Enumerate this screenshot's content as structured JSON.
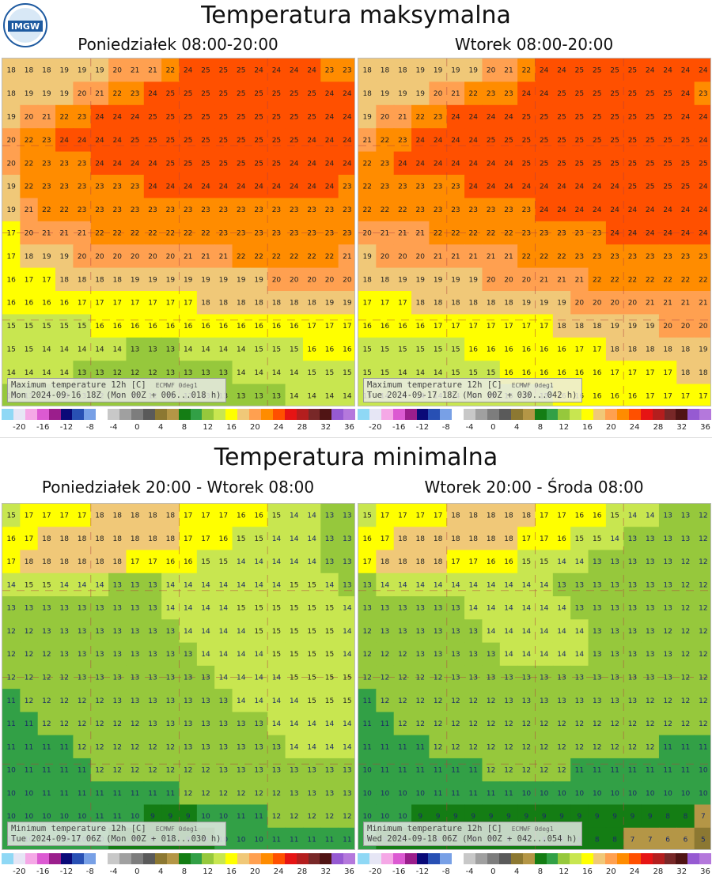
{
  "logo": {
    "text": "IMGW",
    "icon": "imgw-logo"
  },
  "sections": [
    {
      "title": "Temperatura maksymalna",
      "panels": [
        {
          "label": "Poniedziałek 08:00-20:00",
          "caption_line1": "Maximum temperature 12h [C]",
          "caption_src": "ECMWF 0deg1",
          "caption_line2": "Mon 2024-09-16 18Z (Mon 00Z + 006...018 h)"
        },
        {
          "label": "Wtorek 08:00-20:00",
          "caption_line1": "Maximum temperature 12h [C]",
          "caption_src": "ECMWF 0deg1",
          "caption_line2": "Tue 2024-09-17 18Z (Mon 00Z + 030...042 h)"
        }
      ]
    },
    {
      "title": "Temperatura minimalna",
      "panels": [
        {
          "label": "Poniedziałek 20:00 - Wtorek 08:00",
          "caption_line1": "Minimum temperature 12h [C]",
          "caption_src": "ECMWF 0deg1",
          "caption_line2": "Tue 2024-09-17 06Z (Mon 00Z + 018...030 h)"
        },
        {
          "label": "Wtorek 20:00 - Środa 08:00",
          "caption_line1": "Minimum temperature 12h [C]",
          "caption_src": "ECMWF 0deg1",
          "caption_line2": "Wed 2024-09-18 06Z (Mon 00Z + 042...054 h)"
        }
      ]
    }
  ],
  "legend": {
    "ticks": [
      "-20",
      "-16",
      "-12",
      "-8",
      "-4",
      "0",
      "4",
      "8",
      "12",
      "16",
      "20",
      "24",
      "28",
      "32",
      "36"
    ],
    "colors": [
      "#8fd8f5",
      "#e6e6f5",
      "#f5a8e6",
      "#dc5ad2",
      "#9b1e8c",
      "#0a0a78",
      "#2850b4",
      "#78a0e6",
      "#ffffff",
      "#c8c8c8",
      "#a0a0a0",
      "#7d7d7d",
      "#5a5a5a",
      "#8c7832",
      "#b49646",
      "#147d14",
      "#32a046",
      "#96c83c",
      "#c8e650",
      "#ffff00",
      "#f0c878",
      "#ffa050",
      "#ff8c00",
      "#ff5000",
      "#e61414",
      "#b41e1e",
      "#782828",
      "#501414",
      "#965ad2",
      "#b478dc"
    ]
  },
  "maps": [
    {
      "rows": [
        "18 18 18 19 19 19 20 21 21 22 24 25 25 25 24 24 24 24 23 23",
        "18 19 19 19 20 21 22 23 24 25 25 25 25 25 25 25 25 25 24 24",
        "19 20 21 22 23 24 24 24 25 25 25 25 25 25 25 25 25 25 24 24",
        "20 22 23 24 24 24 24 25 25 25 25 25 25 25 25 25 25 24 24 24",
        "20 22 23 23 23 24 24 24 24 25 25 25 25 25 25 25 24 24 24 24",
        "19 22 23 23 23 23 23 23 24 24 24 24 24 24 24 24 24 24 24 23",
        "19 21 22 22 23 23 23 23 23 23 23 23 23 23 23 23 23 23 23 23",
        "17 20 21 21 21 22 22 22 22 22 22 22 23 23 23 23 23 23 23 23",
        "17 18 19 19 20 20 20 20 20 20 21 21 21 22 22 22 22 22 22 21",
        "16 17 17 18 18 18 18 19 19 19 19 19 19 19 19 20 20 20 20 20",
        "16 16 16 16 17 17 17 17 17 17 17 18 18 18 18 18 18 18 19 19",
        "15 15 15 15 15 16 16 16 16 16 16 16 16 16 16 16 16 17 17 17",
        "15 15 14 14 14 14 14 13 13 13 14 14 14 14 15 15 15 16 16 16",
        "14 14 14 14 13 13 12 12 12 13 13 13 13 14 14 14 14 15 15 15",
        "13 13 13 13 13 12 12 12 12 12 13 13 13 13 13 13 14 14 14 14"
      ]
    },
    {
      "rows": [
        "18 18 18 19 19 19 19 20 21 22 24 24 25 25 25 25 24 24 24 24",
        "18 19 19 19 20 21 22 23 23 24 24 25 25 25 25 25 25 25 24 23",
        "19 20 21 22 23 24 24 24 24 25 25 25 25 25 25 25 25 25 24 24",
        "21 22 23 24 24 24 24 25 25 25 25 25 25 25 25 25 25 25 25 24",
        "22 23 24 24 24 24 24 24 24 25 25 25 25 25 25 25 25 25 25 25",
        "22 23 23 23 23 23 24 24 24 24 24 24 24 24 24 25 25 25 25 24",
        "22 22 22 23 23 23 23 23 23 23 24 24 24 24 24 24 24 24 24 24",
        "20 21 21 21 22 22 22 22 22 23 23 23 23 23 24 24 24 24 24 24",
        "19 20 20 20 21 21 21 21 21 22 22 22 23 23 23 23 23 23 23 23",
        "18 18 19 19 19 19 19 20 20 20 21 21 21 22 22 22 22 22 22 22",
        "17 17 17 18 18 18 18 18 18 19 19 19 20 20 20 20 21 21 21 21",
        "16 16 16 16 17 17 17 17 17 17 17 18 18 18 19 19 19 20 20 20",
        "15 15 15 15 15 15 16 16 16 16 16 16 17 17 18 18 18 18 18 19",
        "15 15 14 14 14 15 15 15 16 16 16 16 16 16 17 17 17 17 18 18",
        "15 14 14 14 14 14 14 15 15 15 15 16 16 16 16 16 17 17 17 17"
      ]
    },
    {
      "rows": [
        "15 17 17 17 17 18 18 18 18 18 17 17 17 16 16 15 14 14 13 13",
        "16 17 18 18 18 18 18 18 18 18 17 17 16 15 15 14 14 14 13 13",
        "17 18 18 18 18 18 18 17 17 16 16 15 15 14 14 14 14 14 13 13",
        "14 15 15 14 14 14 13 13 13 14 14 14 14 14 14 14 15 15 14 13",
        "13 13 13 13 13 13 13 13 13 14 14 14 14 15 15 15 15 15 15 14",
        "12 12 13 13 13 13 13 13 13 13 14 14 14 14 15 15 15 15 15 14",
        "12 12 12 13 13 13 13 13 13 13 13 14 14 14 14 15 15 15 15 14",
        "12 12 12 12 13 13 13 13 13 13 13 13 14 14 14 14 15 15 15 15",
        "11 12 12 12 12 12 13 13 13 13 13 13 13 14 14 14 14 15 15 15",
        "11 11 12 12 12 12 12 12 13 13 13 13 13 13 13 14 14 14 14 14",
        "11 11 11 11 12 12 12 12 12 12 13 13 13 13 13 13 14 14 14 14",
        "10 11 11 11 11 12 12 12 12 12 12 12 13 13 13 13 13 13 13 13",
        "10 10 11 11 11 11 11 11 11 11 12 12 12 12 12 12 13 13 13 13",
        "10 10 10 10 10 11 11 10 9 9 9 10 10 11 11 12 12 12 12 12",
        "10 10 10 10 10 10 9 9 8 8 9 9 10 10 10 11 11 11 11 11"
      ]
    },
    {
      "rows": [
        "15 17 17 17 17 18 18 18 18 18 17 17 16 16 15 14 14 13 13 12",
        "16 17 18 18 18 18 18 18 18 17 17 16 15 15 14 13 13 13 13 12",
        "17 18 18 18 18 17 17 16 16 15 15 14 14 13 13 13 13 13 12 12",
        "13 14 14 14 14 14 14 14 14 14 14 13 13 13 13 13 13 13 12 12",
        "13 13 13 13 13 13 14 14 14 14 14 14 13 13 13 13 13 13 12 12",
        "12 13 13 13 13 13 13 14 14 14 14 14 14 13 13 13 13 12 12 12",
        "12 12 12 13 13 13 13 13 14 14 14 14 14 13 13 13 13 13 12 12",
        "12 12 12 12 12 13 13 13 13 13 13 13 13 13 13 13 13 13 12 12",
        "11 12 12 12 12 12 12 12 13 13 13 13 13 13 13 13 12 12 12 12",
        "11 11 12 12 12 12 12 12 12 12 12 12 12 12 12 12 12 12 12 12",
        "11 11 11 11 12 12 12 12 12 12 12 12 12 12 12 12 12 11 11 11",
        "10 11 11 11 11 11 11 12 12 12 12 12 11 11 11 11 11 11 11 10",
        "10 10 10 10 11 11 11 11 11 10 10 10 10 10 10 10 10 10 10 10",
        "10 10 10 9 9 9 9 9 9 9 9 9 9 9 9 9 9 8 8 7",
        "10 9 9 9 9 8 8 8 8 8 8 8 8 8 8 7 7 6 6 5"
      ]
    }
  ]
}
